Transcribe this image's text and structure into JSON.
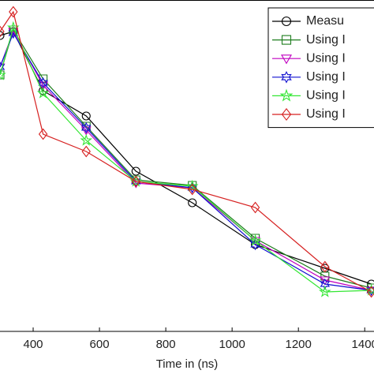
{
  "chart_data": {
    "type": "line",
    "xlabel": "Time in (ns)",
    "x": [
      300,
      340,
      430,
      560,
      710,
      880,
      1070,
      1280,
      1420
    ],
    "xlim": [
      300,
      1428
    ],
    "xticks": [
      400,
      600,
      800,
      1000,
      1200,
      1400
    ],
    "ylim": [
      -5,
      100
    ],
    "legend": "upper right",
    "series": [
      {
        "name": "Measu",
        "color": "#000000",
        "marker": "circle",
        "values": [
          88.75,
          90,
          71.25,
          63.25,
          45.75,
          35.75,
          22.5,
          15,
          10
        ]
      },
      {
        "name": "Using I",
        "color": "#1e7d1e",
        "marker": "square",
        "values": [
          76.25,
          90.5,
          75,
          60,
          43,
          41.25,
          24.5,
          12.5,
          8.75
        ]
      },
      {
        "name": "Using I",
        "color": "#c000c0",
        "marker": "triangle-down",
        "values": [
          78.75,
          90,
          73,
          58.75,
          42,
          40.5,
          23.75,
          11.25,
          8
        ]
      },
      {
        "name": "Using I",
        "color": "#1010d0",
        "marker": "hexagram",
        "values": [
          78.75,
          89.5,
          73.75,
          59.5,
          42.5,
          40.5,
          22.5,
          10,
          8
        ]
      },
      {
        "name": "Using I",
        "color": "#33e633",
        "marker": "pentagram",
        "values": [
          76.25,
          91.25,
          70.5,
          55.5,
          42.5,
          41,
          23.75,
          7.5,
          8
        ]
      },
      {
        "name": "Using I",
        "color": "#d62020",
        "marker": "diamond",
        "values": [
          90,
          96.25,
          57.5,
          52,
          42.5,
          40,
          34.25,
          15.5,
          7.5
        ]
      }
    ]
  }
}
